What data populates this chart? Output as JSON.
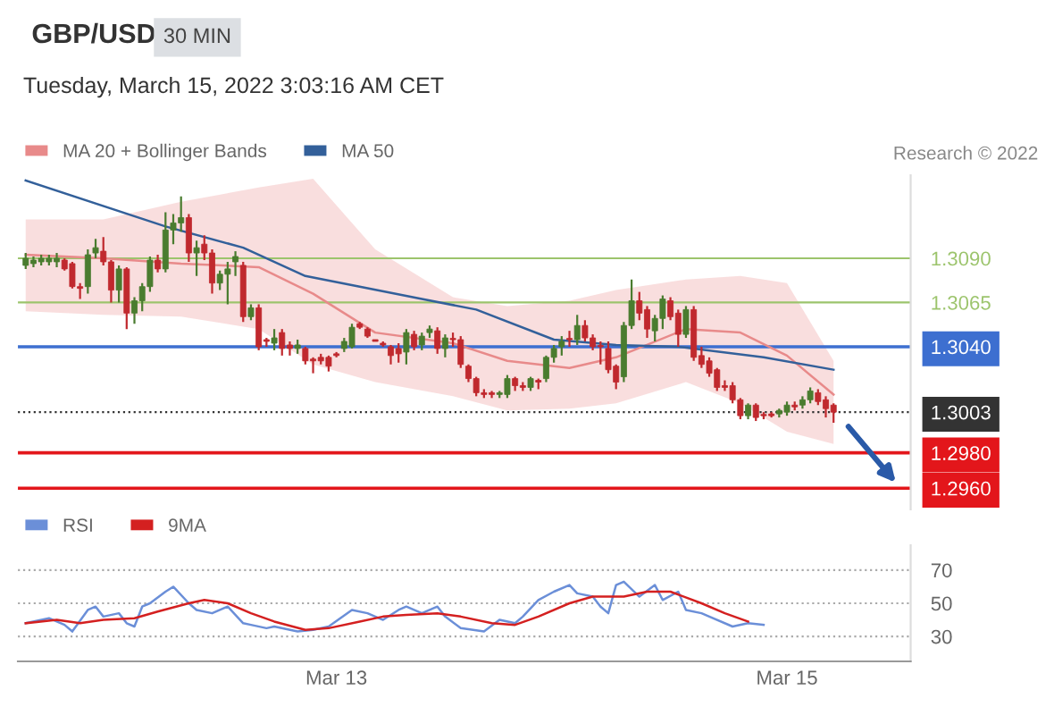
{
  "chart_data": [
    {
      "type": "candlestick",
      "title": "GBP/USD",
      "subtitle": "30 MIN",
      "annotations": [
        "Tuesday, March 15, 2022 3:03:16 AM CET",
        "Research © 2022"
      ],
      "categories": [
        null,
        null,
        null,
        null,
        null,
        null,
        null,
        null,
        null,
        null,
        null,
        null,
        null,
        null,
        null,
        null,
        null,
        null,
        null,
        null,
        null,
        null,
        null,
        null,
        null,
        null,
        null,
        null,
        null,
        null,
        null,
        null,
        null,
        null,
        null,
        null,
        null,
        null,
        null,
        null,
        null,
        null,
        null,
        null,
        null,
        null,
        null,
        null,
        null,
        null,
        null,
        null,
        null,
        null,
        null,
        null,
        null,
        null,
        null,
        null,
        null,
        null,
        null,
        null,
        null,
        null,
        null,
        null,
        null,
        null,
        null,
        null,
        null,
        null,
        null,
        null,
        null,
        null,
        null,
        null,
        null,
        null,
        null,
        null,
        null,
        null,
        null,
        null,
        null,
        null,
        null,
        null,
        null,
        null,
        null,
        null,
        null,
        null,
        null,
        null,
        null,
        null,
        null,
        null,
        null
      ],
      "ohlc": [
        [
          1.3086,
          1.3093,
          1.3084,
          1.309
        ],
        [
          1.3087,
          1.3091,
          1.3085,
          1.3089
        ],
        [
          1.3088,
          1.3092,
          1.3086,
          1.309
        ],
        [
          1.3088,
          1.3092,
          1.3086,
          1.309
        ],
        [
          1.3088,
          1.3093,
          1.3085,
          1.309
        ],
        [
          1.3089,
          1.309,
          1.3083,
          1.3084
        ],
        [
          1.3087,
          1.3088,
          1.3073,
          1.3074
        ],
        [
          1.3074,
          1.3076,
          1.3067,
          1.3073
        ],
        [
          1.3074,
          1.3095,
          1.307,
          1.3092
        ],
        [
          1.3093,
          1.3101,
          1.309,
          1.3096
        ],
        [
          1.3094,
          1.3102,
          1.3086,
          1.3088
        ],
        [
          1.3088,
          1.3089,
          1.3065,
          1.3072
        ],
        [
          1.3072,
          1.3086,
          1.3065,
          1.3084
        ],
        [
          1.3084,
          1.3085,
          1.305,
          1.3059
        ],
        [
          1.3059,
          1.3068,
          1.3053,
          1.3066
        ],
        [
          1.3066,
          1.3076,
          1.306,
          1.3074
        ],
        [
          1.3074,
          1.3091,
          1.3071,
          1.3089
        ],
        [
          1.3089,
          1.3092,
          1.3082,
          1.3084
        ],
        [
          1.3084,
          1.3116,
          1.3082,
          1.3106
        ],
        [
          1.3106,
          1.3115,
          1.3098,
          1.311
        ],
        [
          1.311,
          1.3125,
          1.3105,
          1.3113
        ],
        [
          1.3113,
          1.3115,
          1.3088,
          1.3093
        ],
        [
          1.3093,
          1.31,
          1.308,
          1.3096
        ],
        [
          1.3098,
          1.3103,
          1.3089,
          1.3093
        ],
        [
          1.3093,
          1.3095,
          1.307,
          1.3076
        ],
        [
          1.3076,
          1.3083,
          1.3072,
          1.3081
        ],
        [
          1.3081,
          1.3088,
          1.3064,
          1.3084
        ],
        [
          1.3088,
          1.3094,
          1.308,
          1.3091
        ],
        [
          1.3086,
          1.3088,
          1.3054,
          1.3057
        ],
        [
          1.3057,
          1.3064,
          1.3055,
          1.3062
        ],
        [
          1.3062,
          1.3064,
          1.3038,
          1.304
        ],
        [
          1.3044,
          1.3045,
          1.304,
          1.3043
        ],
        [
          1.3042,
          1.305,
          1.3038,
          1.3045
        ],
        [
          1.3048,
          1.305,
          1.3035,
          1.3039
        ],
        [
          1.3041,
          1.3043,
          1.3035,
          1.3039
        ],
        [
          1.3039,
          1.3044,
          1.3036,
          1.3041
        ],
        [
          1.3039,
          1.304,
          1.303,
          1.3032
        ],
        [
          1.3033,
          1.3034,
          1.3025,
          1.3032
        ],
        [
          1.3034,
          1.3036,
          1.303,
          1.3032
        ],
        [
          1.3034,
          1.3035,
          1.3026,
          1.3029
        ],
        [
          1.3036,
          1.3037,
          1.3034,
          1.3035
        ],
        [
          1.3039,
          1.3045,
          1.3037,
          1.3043
        ],
        [
          1.304,
          1.3053,
          1.3039,
          1.3051
        ],
        [
          1.3053,
          1.3054,
          1.305,
          1.3051
        ],
        [
          1.305,
          1.3051,
          1.3045,
          1.3046
        ],
        [
          1.3044,
          1.3044,
          1.3043,
          1.3043
        ],
        [
          1.3042,
          1.3043,
          1.304,
          1.3041
        ],
        [
          1.304,
          1.3041,
          1.303,
          1.3035
        ],
        [
          1.3039,
          1.3042,
          1.3031,
          1.3036
        ],
        [
          1.3037,
          1.305,
          1.303,
          1.3048
        ],
        [
          1.3047,
          1.3049,
          1.3038,
          1.304
        ],
        [
          1.3041,
          1.3048,
          1.3038,
          1.3046
        ],
        [
          1.3048,
          1.3052,
          1.3045,
          1.305
        ],
        [
          1.3049,
          1.3051,
          1.3036,
          1.3039
        ],
        [
          1.3039,
          1.3047,
          1.3034,
          1.3045
        ],
        [
          1.3044,
          1.3048,
          1.304,
          1.3044
        ],
        [
          1.3044,
          1.3046,
          1.3028,
          1.303
        ],
        [
          1.3029,
          1.303,
          1.302,
          1.3022
        ],
        [
          1.3022,
          1.3023,
          1.3012,
          1.3014
        ],
        [
          1.3014,
          1.3016,
          1.3011,
          1.3013
        ],
        [
          1.3014,
          1.3015,
          1.3011,
          1.3013
        ],
        [
          1.3013,
          1.3015,
          1.3011,
          1.3014
        ],
        [
          1.3013,
          1.3024,
          1.3011,
          1.3022
        ],
        [
          1.3022,
          1.3023,
          1.3015,
          1.3018
        ],
        [
          1.3018,
          1.302,
          1.3015,
          1.3017
        ],
        [
          1.3017,
          1.3023,
          1.3015,
          1.3022
        ],
        [
          1.3021,
          1.3022,
          1.3016,
          1.302
        ],
        [
          1.3022,
          1.3035,
          1.302,
          1.3034
        ],
        [
          1.3034,
          1.3041,
          1.3031,
          1.3039
        ],
        [
          1.304,
          1.3046,
          1.3035,
          1.3043
        ],
        [
          1.3044,
          1.3049,
          1.304,
          1.3044
        ],
        [
          1.3044,
          1.3058,
          1.3041,
          1.3052
        ],
        [
          1.3052,
          1.3055,
          1.3043,
          1.3045
        ],
        [
          1.3045,
          1.3047,
          1.3038,
          1.304
        ],
        [
          1.304,
          1.3043,
          1.303,
          1.304
        ],
        [
          1.3039,
          1.3043,
          1.3025,
          1.3027
        ],
        [
          1.3029,
          1.303,
          1.3016,
          1.302
        ],
        [
          1.3023,
          1.3054,
          1.302,
          1.3052
        ],
        [
          1.3052,
          1.3078,
          1.305,
          1.3066
        ],
        [
          1.3066,
          1.3071,
          1.3055,
          1.3059
        ],
        [
          1.3061,
          1.3063,
          1.3045,
          1.305
        ],
        [
          1.3049,
          1.3058,
          1.3043,
          1.3056
        ],
        [
          1.3056,
          1.3069,
          1.305,
          1.3067
        ],
        [
          1.3066,
          1.3068,
          1.3055,
          1.3057
        ],
        [
          1.3059,
          1.3061,
          1.304,
          1.3047
        ],
        [
          1.3047,
          1.3063,
          1.3045,
          1.3061
        ],
        [
          1.3061,
          1.3063,
          1.3032,
          1.3034
        ],
        [
          1.3035,
          1.304,
          1.3028,
          1.303
        ],
        [
          1.3032,
          1.3034,
          1.3023,
          1.3025
        ],
        [
          1.3027,
          1.3028,
          1.3015,
          1.3017
        ],
        [
          1.3018,
          1.3021,
          1.3015,
          1.3017
        ],
        [
          1.3018,
          1.302,
          1.3008,
          1.301
        ],
        [
          1.301,
          1.3011,
          1.2999,
          1.3001
        ],
        [
          1.3001,
          1.3008,
          1.2999,
          1.3007
        ],
        [
          1.3007,
          1.3008,
          1.2998,
          1.3
        ],
        [
          1.3001,
          1.3003,
          1.2999,
          1.3001
        ],
        [
          1.3002,
          1.3003,
          1.3,
          1.3001
        ],
        [
          1.3002,
          1.3005,
          1.3,
          1.3004
        ],
        [
          1.3003,
          1.3009,
          1.3001,
          1.3007
        ],
        [
          1.3007,
          1.3009,
          1.3004,
          1.3006
        ],
        [
          1.3007,
          1.3012,
          1.3005,
          1.301
        ],
        [
          1.301,
          1.3017,
          1.3008,
          1.3015
        ],
        [
          1.3014,
          1.3016,
          1.3007,
          1.3009
        ],
        [
          1.301,
          1.3012,
          1.3,
          1.3005
        ],
        [
          1.3007,
          1.3008,
          1.2997,
          1.3003
        ]
      ],
      "colors": [
        "#4a7c2f",
        "#4a7c2f",
        "#4a7c2f",
        "#4a7c2f",
        "#4a7c2f",
        "#c0292e",
        "#c0292e",
        "#c0292e",
        "#4a7c2f",
        "#4a7c2f",
        "#c0292e",
        "#c0292e",
        "#4a7c2f",
        "#c0292e",
        "#4a7c2f",
        "#4a7c2f",
        "#4a7c2f",
        "#c0292e",
        "#4a7c2f",
        "#4a7c2f",
        "#4a7c2f",
        "#c0292e",
        "#4a7c2f",
        "#c0292e",
        "#c0292e",
        "#4a7c2f",
        "#4a7c2f",
        "#4a7c2f",
        "#c0292e",
        "#4a7c2f",
        "#c0292e",
        "#c0292e",
        "#4a7c2f",
        "#c0292e",
        "#c0292e",
        "#4a7c2f",
        "#c0292e",
        "#c0292e",
        "#c0292e",
        "#c0292e",
        "#c0292e",
        "#4a7c2f",
        "#4a7c2f",
        "#c0292e",
        "#c0292e",
        "#c0292e",
        "#c0292e",
        "#c0292e",
        "#c0292e",
        "#4a7c2f",
        "#c0292e",
        "#4a7c2f",
        "#4a7c2f",
        "#c0292e",
        "#4a7c2f",
        "#c0292e",
        "#c0292e",
        "#c0292e",
        "#c0292e",
        "#c0292e",
        "#c0292e",
        "#4a7c2f",
        "#4a7c2f",
        "#c0292e",
        "#c0292e",
        "#4a7c2f",
        "#c0292e",
        "#4a7c2f",
        "#4a7c2f",
        "#4a7c2f",
        "#c0292e",
        "#4a7c2f",
        "#c0292e",
        "#c0292e",
        "#c0292e",
        "#c0292e",
        "#c0292e",
        "#4a7c2f",
        "#4a7c2f",
        "#c0292e",
        "#c0292e",
        "#4a7c2f",
        "#4a7c2f",
        "#c0292e",
        "#c0292e",
        "#4a7c2f",
        "#c0292e",
        "#c0292e",
        "#c0292e",
        "#c0292e",
        "#c0292e",
        "#c0292e",
        "#c0292e",
        "#4a7c2f",
        "#c0292e",
        "#c0292e",
        "#c0292e",
        "#4a7c2f",
        "#4a7c2f",
        "#c0292e",
        "#4a7c2f",
        "#4a7c2f",
        "#c0292e",
        "#c0292e",
        "#c0292e"
      ],
      "series": [
        {
          "name": "MA 20 + Bollinger Bands",
          "type": "line",
          "color": "#e88a8a",
          "values": [
            1.3092,
            null,
            null,
            null,
            null,
            null,
            null,
            null,
            null,
            null,
            1.309,
            null,
            null,
            null,
            null,
            null,
            null,
            null,
            null,
            null,
            1.3087,
            null,
            null,
            null,
            null,
            null,
            null,
            null,
            null,
            null,
            1.3085,
            null,
            null,
            null,
            null,
            null,
            null,
            1.307,
            null,
            null,
            null,
            null,
            null,
            null,
            null,
            1.3048,
            null,
            null,
            null,
            null,
            null,
            null,
            null,
            null,
            null,
            1.3042,
            null,
            null,
            null,
            null,
            null,
            null,
            1.3032,
            null,
            null,
            null,
            null,
            null,
            null,
            null,
            1.3028,
            null,
            null,
            null,
            null,
            null,
            1.3034,
            null,
            null,
            null,
            null,
            null,
            null,
            null,
            null,
            1.305,
            null,
            null,
            null,
            null,
            null,
            null,
            1.3048,
            null,
            null,
            null,
            null,
            null,
            1.3035,
            null,
            null,
            null,
            null,
            null,
            1.3013
          ],
          "upper": [
            1.3112,
            null,
            null,
            null,
            null,
            null,
            null,
            null,
            null,
            null,
            1.3112,
            null,
            null,
            null,
            null,
            null,
            null,
            null,
            null,
            null,
            1.3122,
            null,
            null,
            null,
            null,
            null,
            null,
            null,
            null,
            null,
            1.313,
            null,
            null,
            null,
            null,
            null,
            null,
            1.3135,
            null,
            null,
            null,
            null,
            null,
            null,
            null,
            1.3095,
            null,
            null,
            null,
            null,
            null,
            null,
            null,
            null,
            null,
            1.3068,
            null,
            null,
            null,
            null,
            null,
            null,
            1.3063,
            null,
            null,
            null,
            null,
            null,
            null,
            null,
            1.3066,
            null,
            null,
            null,
            null,
            null,
            1.3072,
            null,
            null,
            null,
            null,
            null,
            null,
            null,
            null,
            1.3078,
            null,
            null,
            null,
            null,
            null,
            null,
            1.308,
            null,
            null,
            null,
            null,
            null,
            1.3076,
            null,
            null,
            null,
            null,
            null,
            1.3032
          ],
          "lower": [
            1.306,
            null,
            null,
            null,
            null,
            null,
            null,
            null,
            null,
            null,
            1.3058,
            null,
            null,
            null,
            null,
            null,
            null,
            null,
            null,
            null,
            1.3057,
            null,
            null,
            null,
            null,
            null,
            null,
            null,
            null,
            null,
            1.305,
            null,
            null,
            null,
            null,
            null,
            null,
            1.303,
            null,
            null,
            null,
            null,
            null,
            null,
            null,
            1.302,
            null,
            null,
            null,
            null,
            null,
            null,
            null,
            null,
            null,
            1.3012,
            null,
            null,
            null,
            null,
            null,
            null,
            1.3004,
            null,
            null,
            null,
            null,
            null,
            null,
            null,
            1.3005,
            null,
            null,
            null,
            null,
            null,
            1.3008,
            null,
            null,
            null,
            null,
            null,
            null,
            null,
            null,
            1.302,
            null,
            null,
            null,
            null,
            null,
            null,
            1.3008,
            null,
            null,
            null,
            null,
            null,
            1.2992,
            null,
            null,
            null,
            null,
            null,
            1.2985
          ]
        },
        {
          "name": "MA 50",
          "type": "line",
          "color": "#33609a",
          "values": [
            1.3134,
            null,
            null,
            null,
            null,
            null,
            null,
            null,
            null,
            null,
            null,
            null,
            null,
            null,
            null,
            null,
            null,
            null,
            1.3108,
            null,
            null,
            null,
            null,
            null,
            null,
            null,
            null,
            null,
            1.3096,
            null,
            null,
            null,
            null,
            null,
            null,
            null,
            1.308,
            null,
            null,
            null,
            null,
            null,
            null,
            1.3074,
            null,
            null,
            null,
            null,
            null,
            null,
            null,
            1.3067,
            null,
            null,
            null,
            null,
            null,
            null,
            1.3061,
            null,
            null,
            null,
            null,
            null,
            null,
            null,
            null,
            null,
            1.3044,
            null,
            null,
            null,
            null,
            null,
            null,
            null,
            1.3041,
            null,
            null,
            null,
            null,
            null,
            null,
            null,
            1.304,
            null,
            null,
            null,
            null,
            null,
            null,
            null,
            null,
            null,
            null,
            1.3034,
            null,
            null,
            null,
            null,
            null,
            null,
            null,
            null,
            1.3027
          ]
        }
      ],
      "ref_lines": [
        {
          "axis": "y",
          "value": 1.309,
          "color": "#9cc46c",
          "line_style": "solid"
        },
        {
          "axis": "y",
          "value": 1.3065,
          "color": "#9cc46c",
          "line_style": "solid"
        },
        {
          "axis": "y",
          "value": 1.304,
          "color": "#3d6fd0",
          "line_style": "solid"
        },
        {
          "axis": "y",
          "value": 1.3003,
          "color": "#333333",
          "line_style": "dotted"
        },
        {
          "axis": "y",
          "value": 1.298,
          "color": "#e3161b",
          "line_style": "solid"
        },
        {
          "axis": "y",
          "value": 1.296,
          "color": "#e3161b",
          "line_style": "solid"
        }
      ],
      "ylim": [
        1.2948,
        1.3137
      ],
      "yticks": [
        {
          "value": 1.296,
          "label": "1.2960"
        },
        {
          "value": 1.298,
          "label": "1.2980"
        },
        {
          "value": 1.3003,
          "label": "1.3003"
        },
        {
          "value": 1.304,
          "label": "1.3040"
        },
        {
          "value": 1.3065,
          "label": "1.3065"
        },
        {
          "value": 1.309,
          "label": "1.3090"
        }
      ],
      "tick_labels": "y",
      "legend": "top left"
    },
    {
      "type": "line",
      "series": [
        {
          "name": "RSI",
          "color": "#6b8fd8",
          "values": [
            38,
            null,
            null,
            41,
            null,
            37,
            33,
            null,
            46,
            48,
            42,
            null,
            44,
            38,
            36,
            48,
            50,
            null,
            57,
            60,
            null,
            50,
            46,
            null,
            44,
            null,
            48,
            null,
            38,
            37,
            null,
            35,
            36,
            null,
            null,
            33,
            null,
            34,
            null,
            36,
            null,
            null,
            46,
            null,
            44,
            null,
            40,
            null,
            46,
            48,
            null,
            44,
            null,
            48,
            42,
            null,
            35,
            null,
            null,
            33,
            null,
            40,
            null,
            38,
            42,
            null,
            52,
            null,
            57,
            null,
            61,
            56,
            null,
            54,
            48,
            44,
            61,
            63,
            null,
            54,
            null,
            61,
            52,
            null,
            57,
            46,
            null,
            44,
            42,
            null,
            null,
            36,
            null,
            38,
            null,
            37,
            null,
            null,
            null,
            null,
            null,
            null,
            null,
            null,
            null
          ]
        },
        {
          "name": "9MA",
          "color": "#d42020",
          "values": [
            38,
            null,
            null,
            null,
            40,
            null,
            null,
            38,
            null,
            null,
            40,
            null,
            null,
            null,
            41,
            null,
            null,
            45,
            null,
            null,
            null,
            50,
            null,
            52,
            null,
            null,
            50,
            null,
            null,
            44,
            null,
            null,
            39,
            null,
            null,
            null,
            34,
            null,
            null,
            35,
            null,
            null,
            null,
            39,
            null,
            null,
            42,
            null,
            null,
            43,
            null,
            null,
            null,
            44,
            null,
            null,
            42,
            null,
            null,
            null,
            38,
            null,
            null,
            37,
            null,
            null,
            42,
            null,
            null,
            null,
            50,
            null,
            null,
            54,
            null,
            null,
            null,
            54,
            null,
            null,
            57,
            null,
            null,
            57,
            null,
            null,
            null,
            50,
            null,
            null,
            44,
            null,
            null,
            39,
            null,
            null,
            null,
            null,
            null,
            null,
            null,
            null,
            null,
            null,
            null
          ]
        }
      ],
      "categories": [
        null,
        null,
        null,
        null,
        null,
        null,
        null,
        null,
        null,
        null,
        null,
        null,
        null,
        null,
        null,
        null,
        null,
        null,
        null,
        null,
        null,
        null,
        null,
        null,
        null,
        null,
        null,
        null,
        null,
        null,
        null,
        null,
        null,
        null,
        null,
        null,
        null,
        null,
        null,
        null,
        "Mar 13",
        null,
        null,
        null,
        null,
        null,
        null,
        null,
        null,
        null,
        null,
        null,
        null,
        null,
        null,
        null,
        null,
        null,
        null,
        null,
        null,
        null,
        null,
        null,
        null,
        null,
        null,
        null,
        null,
        null,
        null,
        null,
        null,
        null,
        null,
        null,
        null,
        null,
        null,
        null,
        null,
        null,
        null,
        null,
        null,
        null,
        null,
        null,
        null,
        null,
        null,
        null,
        null,
        null,
        null,
        null,
        null,
        null,
        "Mar 15",
        null,
        null,
        null,
        null,
        null,
        null
      ],
      "ylim": [
        15,
        85
      ],
      "yticks": [
        30,
        50,
        70
      ],
      "grid": "y",
      "legend": "top left"
    }
  ]
}
